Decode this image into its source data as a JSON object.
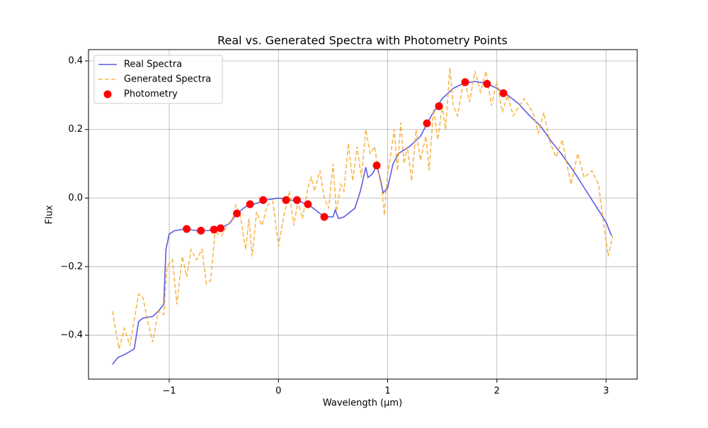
{
  "chart_data": {
    "type": "line",
    "title": "Real vs. Generated Spectra with Photometry Points",
    "xlabel": "Wavelength (µm)",
    "ylabel": "Flux",
    "xlim": [
      -1.739,
      3.285
    ],
    "ylim": [
      -0.528,
      0.433
    ],
    "xticks": [
      {
        "value": -1,
        "label": "−1"
      },
      0,
      1,
      2,
      3
    ],
    "yticks": [
      {
        "value": -0.4,
        "label": "−0.4"
      },
      {
        "value": -0.2,
        "label": "−0.2"
      },
      {
        "value": 0,
        "label": "0.0"
      },
      0.2,
      0.4
    ],
    "grid": true,
    "legend": "upper left",
    "series": [
      {
        "name": "Real Spectra",
        "type": "line",
        "style": "solid",
        "color": "#3333dd",
        "x": [
          -1.52,
          -1.47,
          -1.4,
          -1.32,
          -1.28,
          -1.24,
          -1.15,
          -1.1,
          -1.05,
          -1.03,
          -1.0,
          -0.95,
          -0.85,
          -0.75,
          -0.65,
          -0.55,
          -0.45,
          -0.38,
          -0.3,
          -0.2,
          -0.1,
          0.0,
          0.1,
          0.2,
          0.3,
          0.42,
          0.5,
          0.52,
          0.55,
          0.6,
          0.7,
          0.75,
          0.8,
          0.82,
          0.86,
          0.9,
          0.93,
          0.96,
          1.0,
          1.05,
          1.1,
          1.2,
          1.3,
          1.4,
          1.5,
          1.6,
          1.7,
          1.8,
          1.9,
          2.0,
          2.1,
          2.2,
          2.3,
          2.4,
          2.5,
          2.6,
          2.7,
          2.8,
          2.9,
          3.0,
          3.05
        ],
        "values": [
          -0.485,
          -0.465,
          -0.455,
          -0.44,
          -0.36,
          -0.35,
          -0.345,
          -0.33,
          -0.31,
          -0.15,
          -0.105,
          -0.095,
          -0.09,
          -0.095,
          -0.095,
          -0.09,
          -0.075,
          -0.045,
          -0.025,
          -0.015,
          -0.005,
          0.0,
          -0.005,
          -0.01,
          -0.025,
          -0.055,
          -0.055,
          -0.035,
          -0.06,
          -0.055,
          -0.03,
          0.02,
          0.09,
          0.06,
          0.07,
          0.095,
          0.06,
          0.015,
          0.03,
          0.1,
          0.13,
          0.15,
          0.18,
          0.24,
          0.29,
          0.32,
          0.335,
          0.34,
          0.335,
          0.32,
          0.3,
          0.275,
          0.24,
          0.21,
          0.165,
          0.125,
          0.08,
          0.03,
          -0.02,
          -0.07,
          -0.11
        ]
      },
      {
        "name": "Generated Spectra",
        "type": "line",
        "style": "dashed",
        "color": "#f5a623",
        "x": [
          -1.52,
          -1.46,
          -1.41,
          -1.36,
          -1.28,
          -1.24,
          -1.19,
          -1.15,
          -1.1,
          -1.05,
          -1.02,
          -0.97,
          -0.93,
          -0.88,
          -0.84,
          -0.8,
          -0.75,
          -0.7,
          -0.66,
          -0.62,
          -0.58,
          -0.52,
          -0.47,
          -0.42,
          -0.39,
          -0.35,
          -0.3,
          -0.27,
          -0.24,
          -0.2,
          -0.15,
          -0.1,
          -0.05,
          0.0,
          0.05,
          0.1,
          0.14,
          0.18,
          0.22,
          0.27,
          0.3,
          0.33,
          0.38,
          0.42,
          0.46,
          0.5,
          0.53,
          0.57,
          0.6,
          0.64,
          0.68,
          0.72,
          0.76,
          0.8,
          0.84,
          0.88,
          0.92,
          0.95,
          0.97,
          1.0,
          1.03,
          1.06,
          1.09,
          1.12,
          1.15,
          1.18,
          1.22,
          1.26,
          1.3,
          1.35,
          1.38,
          1.42,
          1.46,
          1.5,
          1.53,
          1.57,
          1.6,
          1.64,
          1.7,
          1.75,
          1.8,
          1.85,
          1.9,
          1.95,
          2.0,
          2.05,
          2.1,
          2.15,
          2.25,
          2.33,
          2.38,
          2.43,
          2.48,
          2.54,
          2.6,
          2.64,
          2.68,
          2.74,
          2.8,
          2.87,
          2.93,
          2.98,
          3.02,
          3.06
        ],
        "values": [
          -0.33,
          -0.44,
          -0.38,
          -0.43,
          -0.28,
          -0.29,
          -0.37,
          -0.42,
          -0.33,
          -0.34,
          -0.2,
          -0.18,
          -0.31,
          -0.17,
          -0.23,
          -0.15,
          -0.18,
          -0.15,
          -0.25,
          -0.24,
          -0.1,
          -0.11,
          -0.08,
          -0.06,
          -0.02,
          -0.05,
          -0.15,
          -0.06,
          -0.17,
          -0.04,
          -0.08,
          -0.02,
          -0.01,
          -0.14,
          -0.05,
          0.02,
          -0.08,
          -0.01,
          -0.06,
          0.03,
          0.06,
          0.02,
          0.08,
          0.0,
          -0.03,
          0.1,
          -0.04,
          0.04,
          0.02,
          0.16,
          0.05,
          0.15,
          0.06,
          0.2,
          0.13,
          0.15,
          0.07,
          0.02,
          -0.05,
          0.07,
          0.13,
          0.2,
          0.08,
          0.22,
          0.1,
          0.15,
          0.05,
          0.2,
          0.11,
          0.18,
          0.08,
          0.26,
          0.17,
          0.27,
          0.2,
          0.38,
          0.27,
          0.24,
          0.35,
          0.28,
          0.37,
          0.31,
          0.37,
          0.27,
          0.34,
          0.25,
          0.3,
          0.24,
          0.29,
          0.25,
          0.19,
          0.25,
          0.17,
          0.12,
          0.17,
          0.1,
          0.04,
          0.13,
          0.06,
          0.08,
          0.04,
          -0.08,
          -0.17,
          -0.11
        ]
      },
      {
        "name": "Photometry",
        "type": "scatter",
        "color": "#ff0000",
        "x": [
          -0.84,
          -0.71,
          -0.59,
          -0.53,
          -0.38,
          -0.26,
          -0.14,
          0.07,
          0.17,
          0.27,
          0.42,
          0.9,
          1.36,
          1.47,
          1.71,
          1.91,
          2.06
        ],
        "values": [
          -0.09,
          -0.095,
          -0.092,
          -0.088,
          -0.045,
          -0.018,
          -0.006,
          -0.006,
          -0.006,
          -0.018,
          -0.055,
          0.095,
          0.218,
          0.268,
          0.338,
          0.333,
          0.306
        ]
      }
    ]
  }
}
